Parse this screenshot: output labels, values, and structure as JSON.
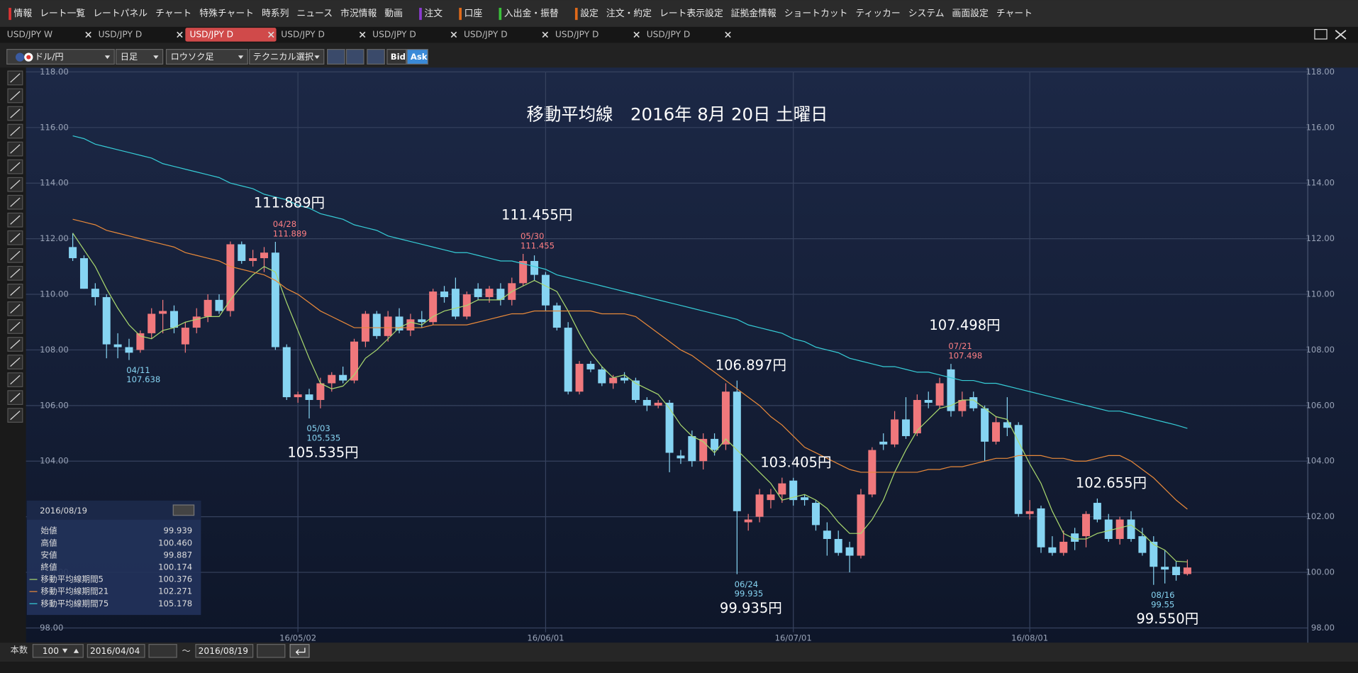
{
  "menu": [
    "情報",
    "レート一覧",
    "レートパネル",
    "チャート",
    "特殊チャート",
    "時系列",
    "ニュース",
    "市況情報",
    "動画",
    "注文",
    "口座",
    "入出金・振替",
    "設定",
    "注文・約定",
    "レート表示設定",
    "証拠金情報",
    "ショートカット",
    "ティッカー",
    "システム",
    "画面設定",
    "チャート"
  ],
  "tabs": [
    {
      "label": "USD/JPY W",
      "active": false
    },
    {
      "label": "USD/JPY D",
      "active": false
    },
    {
      "label": "USD/JPY D",
      "active": true
    },
    {
      "label": "USD/JPY D",
      "active": false
    },
    {
      "label": "USD/JPY D",
      "active": false
    },
    {
      "label": "USD/JPY D",
      "active": false
    },
    {
      "label": "USD/JPY D",
      "active": false
    },
    {
      "label": "USD/JPY D",
      "active": false
    }
  ],
  "chart_toolbar": {
    "symbol": "ドル/円",
    "period": "日足",
    "style": "ロウソク足",
    "technical": "テクニカル選択",
    "bid": "Bid",
    "ask": "Ask"
  },
  "chart_data": {
    "type": "candlestick",
    "title": "移動平均線　2016年 8月 20日 土曜日",
    "categories": [
      null,
      null,
      null,
      null,
      null,
      null,
      null,
      null,
      null,
      null,
      null,
      null,
      null,
      null,
      null,
      null,
      null,
      null,
      null,
      null,
      "16/05/02",
      null,
      null,
      null,
      null,
      null,
      null,
      null,
      null,
      null,
      null,
      null,
      null,
      null,
      null,
      null,
      null,
      null,
      null,
      null,
      null,
      null,
      "16/06/01",
      null,
      null,
      null,
      null,
      null,
      null,
      null,
      null,
      null,
      null,
      null,
      null,
      null,
      null,
      null,
      null,
      null,
      null,
      null,
      null,
      null,
      "16/07/01",
      null,
      null,
      null,
      null,
      null,
      null,
      null,
      null,
      null,
      null,
      null,
      null,
      null,
      null,
      null,
      null,
      null,
      null,
      null,
      null,
      "16/08/01",
      null,
      null,
      null,
      null,
      null,
      null,
      null,
      null,
      null,
      null,
      null,
      null,
      null,
      null
    ],
    "open": [
      111.7,
      111.3,
      110.2,
      109.9,
      108.2,
      108.1,
      108.0,
      108.6,
      109.3,
      109.4,
      108.2,
      108.8,
      109.2,
      109.8,
      109.4,
      111.8,
      111.2,
      111.3,
      111.5,
      108.1,
      106.3,
      106.4,
      106.2,
      106.8,
      107.1,
      106.9,
      108.3,
      109.3,
      108.5,
      109.2,
      108.7,
      109.1,
      109.0,
      110.1,
      110.2,
      109.2,
      110.2,
      109.9,
      110.2,
      109.8,
      110.4,
      111.2,
      110.7,
      109.6,
      108.8,
      106.5,
      107.5,
      107.3,
      106.8,
      107.0,
      106.9,
      106.2,
      106.0,
      106.1,
      104.2,
      104.9,
      104.0,
      104.8,
      104.6,
      106.5,
      101.8,
      102.0,
      102.6,
      102.8,
      103.3,
      102.7,
      102.5,
      101.5,
      101.2,
      100.9,
      100.6,
      102.8,
      104.7,
      104.6,
      105.5,
      105.0,
      106.2,
      106.0,
      107.3,
      105.8,
      106.3,
      105.9,
      104.7,
      105.4,
      105.3,
      102.1,
      102.3,
      100.9,
      100.7,
      101.4,
      101.3,
      102.5,
      101.9,
      101.2,
      101.9,
      101.3,
      101.1,
      100.2,
      100.2,
      99.939
    ],
    "high": [
      112.2,
      111.4,
      110.4,
      110.0,
      108.6,
      108.4,
      108.7,
      109.5,
      109.8,
      109.6,
      109.0,
      109.5,
      110.0,
      110.0,
      111.9,
      111.9,
      111.6,
      111.7,
      111.889,
      108.2,
      106.5,
      106.6,
      107.0,
      107.2,
      107.4,
      108.4,
      109.4,
      109.4,
      109.4,
      109.5,
      109.3,
      109.4,
      110.2,
      110.3,
      110.6,
      110.1,
      110.4,
      110.3,
      110.4,
      110.6,
      111.455,
      111.4,
      110.8,
      109.7,
      109.0,
      107.6,
      107.6,
      107.4,
      107.1,
      107.2,
      107.0,
      106.3,
      106.2,
      106.2,
      104.4,
      105.1,
      105.0,
      105.0,
      106.8,
      106.897,
      102.1,
      103.0,
      103.0,
      103.405,
      103.4,
      102.8,
      102.6,
      101.8,
      101.5,
      101.1,
      103.0,
      104.5,
      105.0,
      105.8,
      106.3,
      106.4,
      106.5,
      107.0,
      107.498,
      106.5,
      106.5,
      106.0,
      105.6,
      106.3,
      105.4,
      102.6,
      102.4,
      101.3,
      101.5,
      101.6,
      102.2,
      102.655,
      102.1,
      102.0,
      102.2,
      101.6,
      101.3,
      100.8,
      100.4,
      100.46
    ],
    "low": [
      111.2,
      110.2,
      109.6,
      107.7,
      107.7,
      107.638,
      107.9,
      108.4,
      108.6,
      108.6,
      107.9,
      108.6,
      109.0,
      109.3,
      109.2,
      111.1,
      111.0,
      110.8,
      108.0,
      106.2,
      106.1,
      105.535,
      105.9,
      106.5,
      106.8,
      106.8,
      108.1,
      108.4,
      108.3,
      108.6,
      108.5,
      108.8,
      108.9,
      109.7,
      109.1,
      109.1,
      109.8,
      109.7,
      109.6,
      109.6,
      110.3,
      110.5,
      109.4,
      108.7,
      106.4,
      106.4,
      107.2,
      106.7,
      106.6,
      106.8,
      106.1,
      105.8,
      105.9,
      103.6,
      103.9,
      103.8,
      103.7,
      104.2,
      104.4,
      99.935,
      101.5,
      101.8,
      102.3,
      102.5,
      102.4,
      102.4,
      101.5,
      100.6,
      100.6,
      100.0,
      100.5,
      102.7,
      104.4,
      104.5,
      104.8,
      104.9,
      105.9,
      105.9,
      105.6,
      105.6,
      105.8,
      104.0,
      104.6,
      104.9,
      102.0,
      101.9,
      100.7,
      100.6,
      100.6,
      100.8,
      100.9,
      101.8,
      101.1,
      101.0,
      101.1,
      100.6,
      99.55,
      99.6,
      99.7,
      99.887
    ],
    "close": [
      111.3,
      110.2,
      109.9,
      108.2,
      108.1,
      107.9,
      108.6,
      109.3,
      109.4,
      108.8,
      108.8,
      109.2,
      109.8,
      109.4,
      111.8,
      111.2,
      111.3,
      111.5,
      108.1,
      106.3,
      106.4,
      106.2,
      106.8,
      107.1,
      106.9,
      108.3,
      109.3,
      108.5,
      109.2,
      108.7,
      109.1,
      109.0,
      110.1,
      109.9,
      109.2,
      110.0,
      109.9,
      110.2,
      109.8,
      110.4,
      111.2,
      110.7,
      109.6,
      108.8,
      106.5,
      107.5,
      107.3,
      106.8,
      107.0,
      106.9,
      106.2,
      106.0,
      106.1,
      104.3,
      104.1,
      104.0,
      104.8,
      104.4,
      106.5,
      102.2,
      101.9,
      102.8,
      102.8,
      103.2,
      102.6,
      102.6,
      101.7,
      101.2,
      100.7,
      100.6,
      102.8,
      104.4,
      104.6,
      105.5,
      104.9,
      106.2,
      106.1,
      106.8,
      105.8,
      106.2,
      105.9,
      104.7,
      105.4,
      105.2,
      102.1,
      102.2,
      100.9,
      100.7,
      101.1,
      101.1,
      102.1,
      101.9,
      101.2,
      101.9,
      101.2,
      100.7,
      100.2,
      100.1,
      99.9,
      100.174
    ],
    "up_color": "#f0787c",
    "down_color": "#86d4f2",
    "lines": [
      {
        "name": "移動平均線期間5",
        "color": "#a9d86e",
        "values": [
          112.2,
          111.6,
          111.0,
          110.2,
          109.5,
          108.9,
          108.5,
          108.4,
          108.7,
          108.8,
          109.0,
          109.1,
          109.2,
          109.2,
          109.8,
          110.3,
          110.7,
          111.0,
          110.8,
          109.7,
          108.7,
          107.7,
          106.8,
          106.6,
          106.7,
          107.1,
          107.7,
          108.0,
          108.4,
          108.8,
          109.0,
          108.9,
          109.2,
          109.4,
          109.5,
          109.6,
          109.8,
          109.8,
          109.8,
          110.1,
          110.3,
          110.5,
          110.3,
          110.1,
          109.4,
          108.6,
          107.9,
          107.4,
          107.0,
          107.1,
          106.8,
          106.6,
          106.4,
          105.9,
          105.3,
          104.9,
          104.7,
          104.3,
          104.8,
          104.4,
          104.0,
          103.6,
          103.2,
          102.6,
          102.7,
          102.8,
          102.6,
          102.3,
          101.8,
          101.4,
          101.4,
          101.9,
          102.6,
          103.6,
          104.4,
          105.1,
          105.5,
          105.9,
          106.0,
          106.2,
          106.2,
          105.9,
          105.6,
          105.5,
          104.7,
          103.9,
          103.2,
          102.2,
          101.4,
          101.2,
          101.2,
          101.4,
          101.5,
          101.6,
          101.7,
          101.4,
          101.0,
          100.8,
          100.4,
          100.376
        ]
      },
      {
        "name": "移動平均線期間21",
        "color": "#e8893a",
        "values": [
          112.7,
          112.6,
          112.5,
          112.3,
          112.2,
          112.1,
          112.0,
          111.9,
          111.8,
          111.7,
          111.5,
          111.4,
          111.3,
          111.2,
          111.0,
          110.9,
          110.8,
          110.7,
          110.5,
          110.2,
          110.0,
          109.7,
          109.4,
          109.2,
          109.0,
          108.8,
          108.8,
          108.8,
          108.8,
          108.8,
          108.8,
          108.8,
          108.9,
          108.9,
          108.9,
          108.9,
          109.0,
          109.1,
          109.2,
          109.3,
          109.3,
          109.4,
          109.4,
          109.4,
          109.4,
          109.4,
          109.4,
          109.3,
          109.3,
          109.3,
          109.2,
          108.9,
          108.6,
          108.3,
          108.0,
          107.8,
          107.5,
          107.2,
          106.9,
          106.6,
          106.3,
          106.0,
          105.6,
          105.3,
          104.9,
          104.5,
          104.3,
          104.1,
          103.9,
          103.7,
          103.6,
          103.6,
          103.6,
          103.6,
          103.6,
          103.6,
          103.7,
          103.7,
          103.8,
          103.8,
          103.9,
          104.0,
          104.1,
          104.1,
          104.2,
          104.2,
          104.2,
          104.1,
          104.1,
          104.0,
          104.0,
          104.1,
          104.2,
          104.2,
          104.0,
          103.7,
          103.4,
          103.0,
          102.6,
          102.271
        ]
      },
      {
        "name": "移動平均線期間75",
        "color": "#36ccd6",
        "values": [
          115.7,
          115.6,
          115.4,
          115.3,
          115.2,
          115.1,
          115.0,
          114.9,
          114.7,
          114.6,
          114.5,
          114.4,
          114.3,
          114.2,
          114.0,
          113.9,
          113.8,
          113.6,
          113.5,
          113.4,
          113.2,
          113.1,
          112.9,
          112.8,
          112.7,
          112.5,
          112.4,
          112.3,
          112.1,
          112.0,
          111.9,
          111.8,
          111.7,
          111.6,
          111.5,
          111.5,
          111.4,
          111.3,
          111.2,
          111.2,
          111.1,
          111.0,
          110.9,
          110.7,
          110.6,
          110.5,
          110.4,
          110.3,
          110.2,
          110.1,
          110.0,
          109.9,
          109.8,
          109.7,
          109.6,
          109.5,
          109.4,
          109.3,
          109.2,
          109.1,
          108.9,
          108.8,
          108.7,
          108.6,
          108.4,
          108.3,
          108.1,
          108.0,
          107.9,
          107.7,
          107.6,
          107.5,
          107.4,
          107.4,
          107.3,
          107.2,
          107.2,
          107.1,
          107.0,
          106.9,
          106.9,
          106.8,
          106.8,
          106.7,
          106.6,
          106.5,
          106.4,
          106.3,
          106.2,
          106.1,
          106.0,
          105.9,
          105.8,
          105.8,
          105.7,
          105.6,
          105.5,
          105.4,
          105.3,
          105.178
        ]
      }
    ],
    "markers": [
      {
        "date": "04/28",
        "value": 111.889,
        "label": "111.889円"
      },
      {
        "date": "05/30",
        "value": 111.455,
        "label": "111.455円"
      },
      {
        "value": 106.897,
        "label": "106.897円"
      },
      {
        "value": 103.405,
        "label": "103.405円"
      },
      {
        "date": "07/21",
        "value": 107.498,
        "label": "107.498円"
      },
      {
        "value": 102.655,
        "label": "102.655円"
      },
      {
        "date": "04/11",
        "value": 107.638
      },
      {
        "date": "05/03",
        "value": 105.535,
        "label": "105.535円"
      },
      {
        "date": "06/24",
        "value": 99.935,
        "label": "99.935円"
      },
      {
        "date": "08/16",
        "value": 99.55,
        "label": "99.550円"
      }
    ],
    "ylim": [
      98,
      118
    ],
    "yticks": [
      {
        "value": 98,
        "label": "98.00"
      },
      {
        "value": 100,
        "label": "100.00"
      },
      {
        "value": 102,
        "label": "102.00"
      },
      {
        "value": 104,
        "label": "104.00"
      },
      {
        "value": 106,
        "label": "106.00"
      },
      {
        "value": 108,
        "label": "108.00"
      },
      {
        "value": 110,
        "label": "110.00"
      },
      {
        "value": 112,
        "label": "112.00"
      },
      {
        "value": 114,
        "label": "114.00"
      },
      {
        "value": 116,
        "label": "116.00"
      },
      {
        "value": 118,
        "label": "118.00"
      }
    ],
    "grid": true
  },
  "info_panel": {
    "date": "2016/08/19",
    "rows": [
      [
        "始値",
        "99.939"
      ],
      [
        "高値",
        "100.460"
      ],
      [
        "安値",
        "99.887"
      ],
      [
        "終値",
        "100.174"
      ],
      [
        "移動平均線期間5",
        "100.376"
      ],
      [
        "移動平均線期間21",
        "102.271"
      ],
      [
        "移動平均線期間75",
        "105.178"
      ]
    ]
  },
  "bottom_bar": {
    "count_label": "本数",
    "count": "100",
    "from": "2016/04/04",
    "separator": "～",
    "to": "2016/08/19"
  }
}
